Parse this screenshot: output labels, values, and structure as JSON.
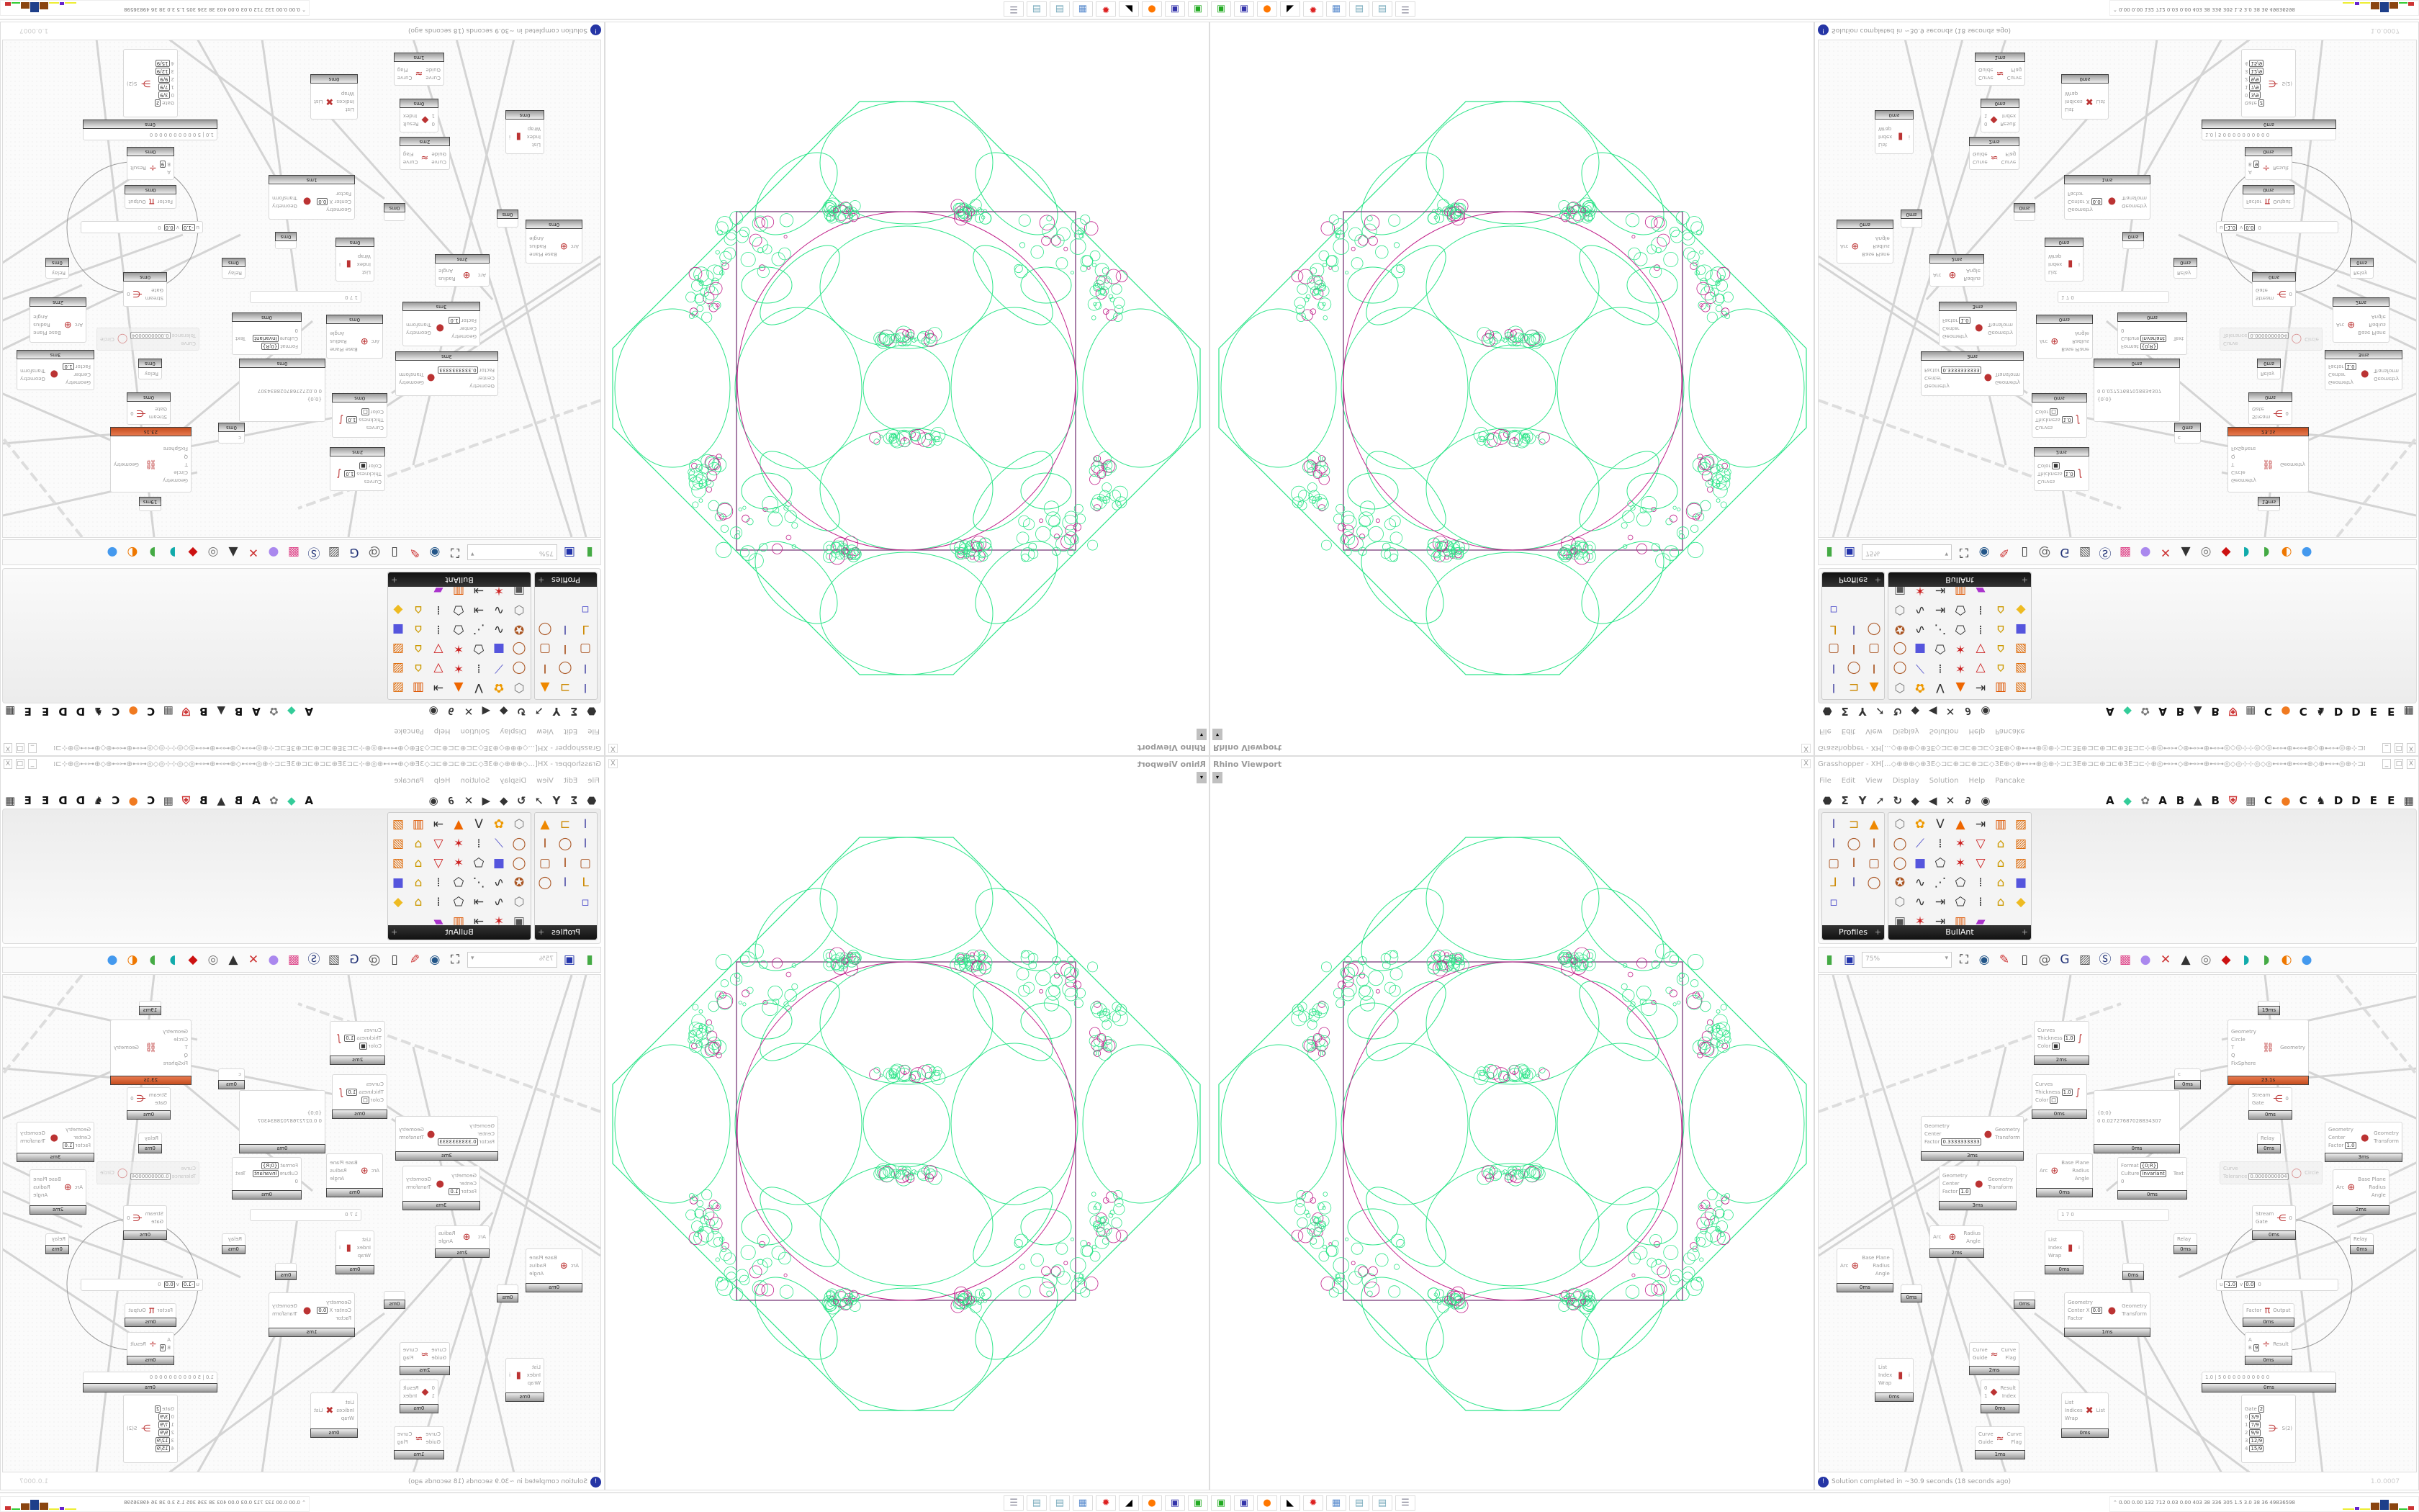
{
  "colors": {
    "geometry": "#2fe58a",
    "highlight": "#c0208a",
    "bounds": "#7a3a7a",
    "hot": "#d05a2a",
    "status_icon": "#2535a5"
  },
  "taskbar": {
    "apps": [
      "green-terminal-icon",
      "floppy-disk-icon",
      "firefox-icon",
      "rhino-icon",
      "red-gear-icon",
      "calculator-icon",
      "notepad-icon",
      "notepad-icon",
      "stack-icon"
    ],
    "stats": "0.00 0.00 132 712 0.03 0.00 403 38 336 305 1.5 3.0 38 36 49836598"
  },
  "viewport": {
    "title": "Rhino Viewport",
    "close": "X"
  },
  "grasshopper": {
    "title": "Grasshopper - XH[...◇⊕⊕⊕◇⊕3E◇⊐⊏⊕⊐⊏⊕⊐⊏◇3E⊕◇⊕⊷⊶⊕◎⊕⊹⊐⊏3E⊕⊐⊏⊕⊐⊏⊕3E⊐⊏⊹⊕◎⊷⊶◇⊕⊷⊶⊕⊷⊶◎◇◎⊹⊹◎◇◎⊷⊶⊕⊷⊶⊕◇⊕⊷⊶◎⊕⊹⊐⊏3E⊕⊐⊏⊕...",
    "window_buttons": [
      "_",
      "□",
      "X"
    ],
    "menu": [
      "File",
      "Edit",
      "View",
      "Display",
      "Solution",
      "Help",
      "Pancake"
    ],
    "tab_icons": [
      "⬣",
      "Σ",
      "Y",
      "➚",
      "↻",
      "◆",
      "◀",
      "✕",
      "∂",
      "◉",
      "",
      "A",
      "◆",
      "✿",
      "A",
      "B",
      "▲",
      "B",
      "⛨",
      "▦",
      "C",
      "●",
      "C",
      "♞",
      "D",
      "D",
      "E",
      "E",
      "▦"
    ],
    "panels": [
      {
        "label": "Profiles",
        "icons": [
          "ibeam",
          "channel",
          "flame",
          "ibeam",
          "ring",
          "isec",
          "rect",
          "isec",
          "rect",
          "angle",
          "ibeam",
          "ring",
          "points"
        ]
      },
      {
        "label": "BullAnt",
        "icons": [
          "box",
          "flower",
          "vee",
          "cone",
          "split",
          "frame",
          "chart",
          "ring",
          "blade",
          "bars",
          "star",
          "tri",
          "lock",
          "chart",
          "ring",
          "cube",
          "poly",
          "star",
          "tri",
          "lock",
          "chart",
          "gear",
          "curve",
          "nodes",
          "poly",
          "pts",
          "lock",
          "cube",
          "box",
          "curve",
          "split",
          "poly",
          "pts",
          "lock",
          "gem",
          "pic",
          "star",
          "split",
          "frame",
          "rainbow"
        ]
      }
    ],
    "zoom": "75%",
    "canvas_tools": [
      "new-file",
      "save",
      "zoom-extents",
      "eye",
      "sketch",
      "cable",
      "at",
      "gha",
      "image",
      "search",
      "package",
      "bulb",
      "twist",
      "bell",
      "donut",
      "red-box",
      "teal",
      "green",
      "ball",
      "sphere"
    ],
    "status": "Solution completed in ~30.9 seconds (18 seconds ago)",
    "status_icon": "!",
    "version": "1.0.0007"
  },
  "canvas": {
    "nodes": [
      {
        "inputs": [
          {
            "label": "Curves"
          },
          {
            "label": "Thickness",
            "value": "1.0"
          },
          {
            "label": "Color",
            "value": "■"
          }
        ],
        "outputs": [],
        "icon": "∫",
        "time": "2ms"
      },
      {
        "inputs": [
          {
            "label": "Curves"
          },
          {
            "label": "Thickness",
            "value": "1.0"
          },
          {
            "label": "Color",
            "value": "□"
          }
        ],
        "outputs": [],
        "icon": "∫",
        "time": "0ms"
      },
      {
        "inputs": [
          {
            "label": "Geometry"
          },
          {
            "label": "Center"
          },
          {
            "label": "Factor",
            "value": "0.3333333333"
          }
        ],
        "outputs": [
          {
            "label": "Geometry"
          },
          {
            "label": "Transform"
          }
        ],
        "icon": "●",
        "time": "3ms"
      },
      {
        "inputs": [
          {
            "label": "Geometry"
          },
          {
            "label": "Center"
          },
          {
            "label": "Factor",
            "value": "1.0"
          }
        ],
        "outputs": [
          {
            "label": "Geometry"
          },
          {
            "label": "Transform"
          }
        ],
        "icon": "●",
        "time": "3ms"
      },
      {
        "inputs": [
          {
            "label": "Arc"
          }
        ],
        "outputs": [
          {
            "label": "Base Plane"
          },
          {
            "label": "Radius"
          },
          {
            "label": "Angle"
          }
        ],
        "icon": "⊕",
        "time": "0ms"
      },
      {
        "inputs": [
          {
            "label": "{0;0}"
          },
          {
            "label": "0  0.02727687028834307"
          }
        ],
        "outputs": [],
        "icon": "",
        "time": "0ms"
      },
      {
        "inputs": [
          {
            "label": "Geometry"
          },
          {
            "label": "Circle"
          },
          {
            "label": "T"
          },
          {
            "label": "Q"
          },
          {
            "label": "FixSphere"
          }
        ],
        "outputs": [
          {
            "label": "Geometry"
          }
        ],
        "icon": "⛓",
        "time": "23.1s",
        "hot": true
      },
      {
        "inputs": [
          {
            "label": "c"
          }
        ],
        "outputs": [],
        "icon": "",
        "time": "0ms"
      },
      {
        "inputs": [
          {
            "label": "Stream"
          },
          {
            "label": "Gate"
          }
        ],
        "outputs": [
          {
            "label": "0"
          }
        ],
        "icon": "⋲",
        "time": "0ms"
      },
      {
        "inputs": [
          {
            "label": "Relay"
          }
        ],
        "outputs": [],
        "icon": "",
        "time": "0ms"
      },
      {
        "inputs": [
          {
            "label": "Curve"
          },
          {
            "label": "Tolerance",
            "value": "0.0000000004"
          }
        ],
        "outputs": [
          {
            "label": "Circle"
          }
        ],
        "icon": "◯",
        "time": "",
        "dim": true
      },
      {
        "inputs": [
          {
            "label": "Geometry"
          },
          {
            "label": "Center"
          },
          {
            "label": "Factor",
            "value": "1.0"
          }
        ],
        "outputs": [
          {
            "label": "Geometry"
          },
          {
            "label": "Transform"
          }
        ],
        "icon": "●",
        "time": "3ms"
      },
      {
        "inputs": [
          {
            "label": "Arc"
          }
        ],
        "outputs": [
          {
            "label": "Base Plane"
          },
          {
            "label": "Radius"
          },
          {
            "label": "Angle"
          }
        ],
        "icon": "⊕",
        "time": "2ms"
      },
      {
        "inputs": [
          {
            "label": "Format",
            "value": "{0;R}"
          },
          {
            "label": "Culture",
            "value": "Invariant"
          },
          {
            "label": "0"
          }
        ],
        "outputs": [
          {
            "label": "Text"
          }
        ],
        "icon": "",
        "time": "0ms"
      },
      {
        "inputs": [
          {
            "label": "Stream"
          },
          {
            "label": "Gate"
          }
        ],
        "outputs": [
          {
            "label": "0"
          }
        ],
        "icon": "⋲",
        "time": "0ms"
      },
      {
        "inputs": [],
        "outputs": [],
        "icon": "",
        "time": "19ms"
      },
      {
        "inputs": [
          {
            "label": "Arc"
          }
        ],
        "outputs": [
          {
            "label": "Base Plane"
          },
          {
            "label": "Radius"
          },
          {
            "label": "Angle"
          }
        ],
        "icon": "⊕",
        "time": "0ms"
      },
      {
        "inputs": [
          {
            "label": "Arc"
          }
        ],
        "outputs": [
          {
            "label": "Radius"
          },
          {
            "label": "Angle"
          }
        ],
        "icon": "⊕",
        "time": "2ms"
      },
      {
        "inputs": [],
        "outputs": [],
        "icon": "",
        "time": "0ms"
      },
      {
        "inputs": [
          {
            "label": "List"
          },
          {
            "label": "Index"
          },
          {
            "label": "Wrap"
          }
        ],
        "outputs": [
          {
            "label": "i"
          }
        ],
        "icon": "▮",
        "time": "0ms"
      },
      {
        "inputs": [],
        "outputs": [],
        "icon": "",
        "time": "0ms"
      },
      {
        "inputs": [
          {
            "label": "Geometry"
          },
          {
            "label": "Center X",
            "value": "0.0"
          },
          {
            "label": "Factor"
          }
        ],
        "outputs": [
          {
            "label": "Geometry"
          },
          {
            "label": "Transform"
          }
        ],
        "icon": "●",
        "time": "1ms"
      },
      {
        "inputs": [
          {
            "label": "List"
          },
          {
            "label": "Index"
          },
          {
            "label": "Wrap"
          }
        ],
        "outputs": [
          {
            "label": "i"
          }
        ],
        "icon": "▮",
        "time": "0ms"
      },
      {
        "inputs": [
          {
            "label": "Curve"
          },
          {
            "label": "Guide"
          }
        ],
        "outputs": [
          {
            "label": "Curve"
          },
          {
            "label": "Flag"
          }
        ],
        "icon": "≈",
        "time": "2ms"
      },
      {
        "inputs": [
          {
            "label": "0"
          },
          {
            "label": "1"
          }
        ],
        "outputs": [
          {
            "label": "Result"
          },
          {
            "label": "Index"
          }
        ],
        "icon": "◆",
        "time": "0ms"
      },
      {
        "inputs": [
          {
            "label": "Curve"
          },
          {
            "label": "Guide"
          }
        ],
        "outputs": [
          {
            "label": "Curve"
          },
          {
            "label": "Flag"
          }
        ],
        "icon": "≈",
        "time": "1ms"
      },
      {
        "inputs": [
          {
            "label": "List"
          },
          {
            "label": "Indices"
          },
          {
            "label": "Wrap"
          }
        ],
        "outputs": [
          {
            "label": "List"
          }
        ],
        "icon": "✖",
        "time": "0ms"
      },
      {
        "inputs": [
          {
            "label": "Relay"
          }
        ],
        "outputs": [],
        "icon": "",
        "time": "0ms"
      },
      {
        "inputs": [
          {
            "label": "Relay"
          }
        ],
        "outputs": [],
        "icon": "",
        "time": "0ms"
      },
      {
        "inputs": [],
        "outputs": [],
        "icon": "",
        "time": "0ms"
      },
      {
        "inputs": [
          {
            "label": "u",
            "value": "-1.0"
          },
          {
            "label": "v",
            "value": "0.0"
          },
          {
            "label": "0"
          }
        ],
        "outputs": [],
        "icon": "",
        "time": "",
        "slider": true
      },
      {
        "inputs": [
          {
            "label": "Factor"
          }
        ],
        "outputs": [
          {
            "label": "Output"
          }
        ],
        "icon": "π",
        "time": "0ms"
      },
      {
        "inputs": [
          {
            "label": "A"
          },
          {
            "label": "B",
            "value": "9"
          }
        ],
        "outputs": [
          {
            "label": "Result"
          }
        ],
        "icon": "÷",
        "time": "0ms"
      },
      {
        "inputs": [
          {
            "label": "1.0 | 5 0 0 0 0 0 0 0 0 0 0"
          }
        ],
        "outputs": [],
        "icon": "",
        "time": "0ms",
        "slider": true
      },
      {
        "inputs": [
          {
            "label": "Gate",
            "value": "2"
          },
          {
            "label": "0",
            "value": "3/9"
          },
          {
            "label": "1",
            "value": "7/9"
          },
          {
            "label": "2",
            "value": "9/9"
          },
          {
            "label": "3",
            "value": "12/9"
          },
          {
            "label": "4",
            "value": "15/9"
          }
        ],
        "outputs": [
          {
            "label": "S(2)"
          }
        ],
        "icon": "⋺",
        "time": ""
      },
      {
        "inputs": [
          {
            "label": "1 7 0"
          }
        ],
        "outputs": [],
        "icon": "",
        "time": "",
        "slider": true
      }
    ]
  }
}
